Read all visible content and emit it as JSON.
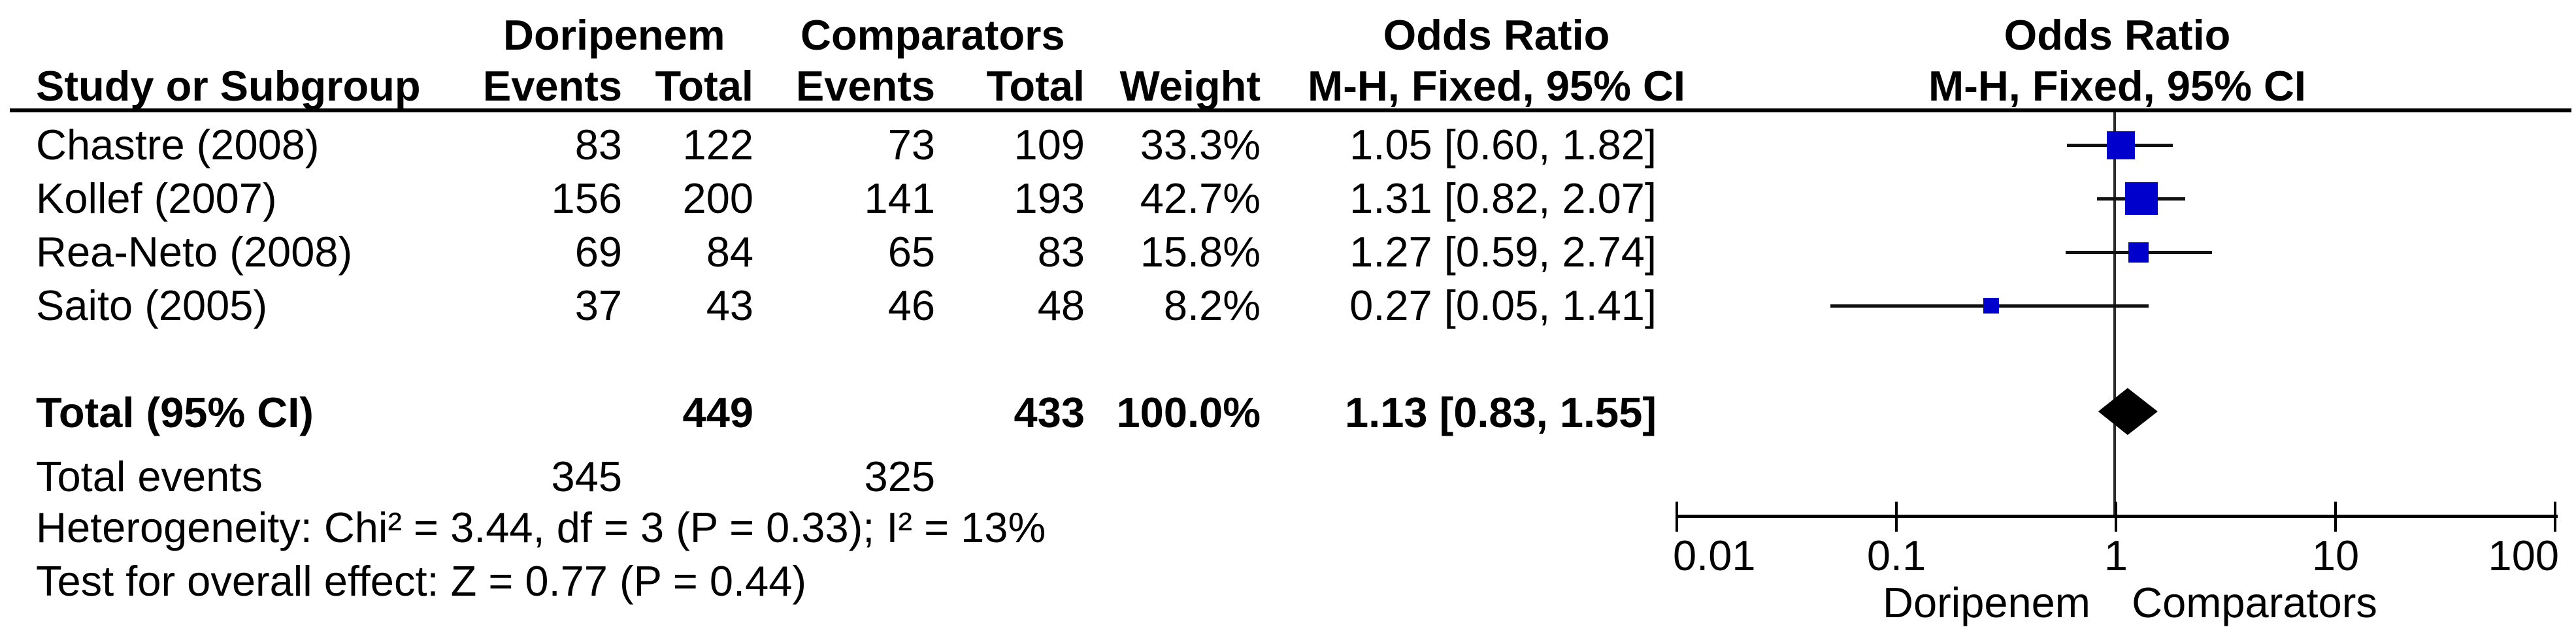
{
  "group_header": {
    "doripenem": "Doripenem",
    "comparators": "Comparators",
    "odds_ratio_text": "Odds Ratio",
    "odds_ratio_plot": "Odds Ratio"
  },
  "column_header": {
    "study": "Study or Subgroup",
    "d_events": "Events",
    "d_total": "Total",
    "c_events": "Events",
    "c_total": "Total",
    "weight": "Weight",
    "mh_text": "M-H, Fixed, 95% CI",
    "mh_plot": "M-H, Fixed, 95% CI"
  },
  "rows": [
    {
      "study": "Chastre (2008)",
      "d_events": "83",
      "d_total": "122",
      "c_events": "73",
      "c_total": "109",
      "weight": "33.3%",
      "or_ci": "1.05 [0.60, 1.82]"
    },
    {
      "study": "Kollef (2007)",
      "d_events": "156",
      "d_total": "200",
      "c_events": "141",
      "c_total": "193",
      "weight": "42.7%",
      "or_ci": "1.31 [0.82, 2.07]"
    },
    {
      "study": "Rea-Neto (2008)",
      "d_events": "69",
      "d_total": "84",
      "c_events": "65",
      "c_total": "83",
      "weight": "15.8%",
      "or_ci": "1.27 [0.59, 2.74]"
    },
    {
      "study": "Saito (2005)",
      "d_events": "37",
      "d_total": "43",
      "c_events": "46",
      "c_total": "48",
      "weight": "8.2%",
      "or_ci": "0.27 [0.05, 1.41]"
    }
  ],
  "total_row": {
    "label": "Total (95% CI)",
    "d_total": "449",
    "c_total": "433",
    "weight": "100.0%",
    "or_ci": "1.13 [0.83, 1.55]"
  },
  "total_events": {
    "label": "Total events",
    "d_events": "345",
    "c_events": "325"
  },
  "footnotes": {
    "heterogeneity": "Heterogeneity: Chi² = 3.44, df = 3 (P = 0.33); I² = 13%",
    "overall_effect": "Test for overall effect: Z = 0.77 (P = 0.44)"
  },
  "axis": {
    "tick_labels": [
      "0.01",
      "0.1",
      "1",
      "10",
      "100"
    ],
    "left_label": "Doripenem",
    "right_label": "Comparators"
  },
  "chart_data": {
    "type": "forest",
    "effect_measure": "Odds Ratio, M-H, Fixed, 95% CI",
    "x_scale": "log",
    "x_min": 0.01,
    "x_max": 100,
    "ticks": [
      0.01,
      0.1,
      1,
      10,
      100
    ],
    "null_line": 1,
    "studies": [
      {
        "name": "Chastre (2008)",
        "or": 1.05,
        "ci_low": 0.6,
        "ci_high": 1.82,
        "weight_pct": 33.3
      },
      {
        "name": "Kollef (2007)",
        "or": 1.31,
        "ci_low": 0.82,
        "ci_high": 2.07,
        "weight_pct": 42.7
      },
      {
        "name": "Rea-Neto (2008)",
        "or": 1.27,
        "ci_low": 0.59,
        "ci_high": 2.74,
        "weight_pct": 15.8
      },
      {
        "name": "Saito (2005)",
        "or": 0.27,
        "ci_low": 0.05,
        "ci_high": 1.41,
        "weight_pct": 8.2
      }
    ],
    "total": {
      "or": 1.13,
      "ci_low": 0.83,
      "ci_high": 1.55,
      "weight_pct": 100.0
    },
    "marker_color": "#0000CC",
    "diamond_color": "#000000",
    "favours_left": "Doripenem",
    "favours_right": "Comparators"
  }
}
